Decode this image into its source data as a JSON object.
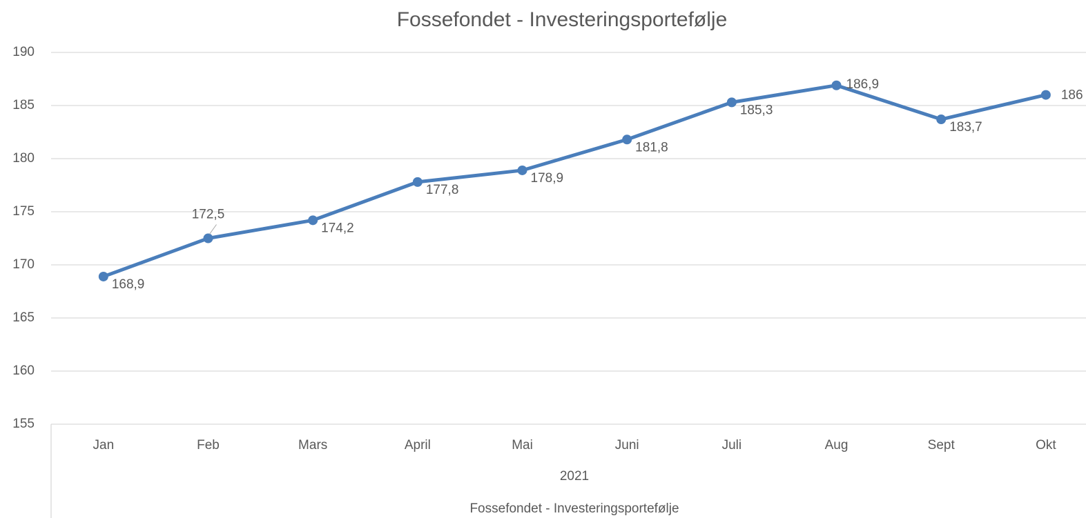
{
  "chart_data": {
    "type": "line",
    "title": "Fossefondet - Investeringsportefølje",
    "categories": [
      "Jan",
      "Feb",
      "Mars",
      "April",
      "Mai",
      "Juni",
      "Juli",
      "Aug",
      "Sept",
      "Okt"
    ],
    "category_group": "2021",
    "series": [
      {
        "name": "Fossefondet - Investeringsportefølje",
        "color": "#4a7ebb",
        "values": [
          168.9,
          172.5,
          174.2,
          177.8,
          178.9,
          181.8,
          185.3,
          186.9,
          183.7,
          186
        ],
        "value_labels": [
          "168,9",
          "172,5",
          "174,2",
          "177,8",
          "178,9",
          "181,8",
          "185,3",
          "186,9",
          "183,7",
          "186"
        ]
      }
    ],
    "ylim": [
      155,
      190
    ],
    "yticks": [
      155,
      160,
      165,
      170,
      175,
      180,
      185,
      190
    ],
    "grid": true
  }
}
